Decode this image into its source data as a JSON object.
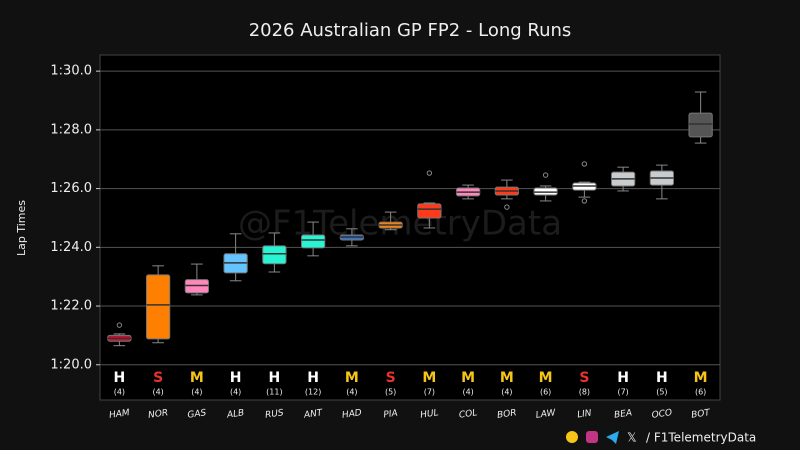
{
  "chart_data": {
    "type": "box",
    "title": "2026 Australian GP FP2 - Long Runs",
    "y_label": "Lap Times",
    "watermark": "@F1TelemetryData",
    "footer": "/ F1TelemetryData",
    "categories": [
      "HAM",
      "NOR",
      "GAS",
      "ALB",
      "RUS",
      "ANT",
      "HAD",
      "PIA",
      "HUL",
      "COL",
      "BOR",
      "LAW",
      "LIN",
      "BEA",
      "OCO",
      "BOT"
    ],
    "colors": [
      "#c8102e",
      "#ff8000",
      "#ff87bc",
      "#64c4ff",
      "#27f4d2",
      "#27f4d2",
      "#3671c6",
      "#ff8000",
      "#ff3a1a",
      "#ff87bc",
      "#ff3a1a",
      "#ffffff",
      "#ffffff",
      "#c8ccce",
      "#c8ccce",
      "#555555"
    ],
    "compounds": [
      "H",
      "S",
      "M",
      "H",
      "H",
      "H",
      "M",
      "S",
      "M",
      "M",
      "M",
      "M",
      "S",
      "H",
      "H",
      "M"
    ],
    "compound_colors": {
      "H": "#ffffff",
      "S": "#e8322b",
      "M": "#f5c518"
    },
    "count_labels": [
      "(4)",
      "(4)",
      "(4)",
      "(4)",
      "(11)",
      "(12)",
      "(4)",
      "(5)",
      "(7)",
      "(4)",
      "(4)",
      "(6)",
      "(8)",
      "(7)",
      "(5)",
      "(6)"
    ],
    "boxes": [
      {
        "min": 80.65,
        "q1": 80.8,
        "median": 80.9,
        "q3": 81.0,
        "max": 81.05,
        "outliers": [
          81.35
        ]
      },
      {
        "min": 80.75,
        "q1": 80.88,
        "median": 82.04,
        "q3": 83.06,
        "max": 83.37,
        "outliers": []
      },
      {
        "min": 82.38,
        "q1": 82.45,
        "median": 82.7,
        "q3": 82.9,
        "max": 83.43,
        "outliers": []
      },
      {
        "min": 82.86,
        "q1": 83.13,
        "median": 83.47,
        "q3": 83.78,
        "max": 84.46,
        "outliers": []
      },
      {
        "min": 83.16,
        "q1": 83.44,
        "median": 83.78,
        "q3": 84.05,
        "max": 84.49,
        "outliers": []
      },
      {
        "min": 83.71,
        "q1": 83.98,
        "median": 84.25,
        "q3": 84.42,
        "max": 84.86,
        "outliers": []
      },
      {
        "min": 84.05,
        "q1": 84.25,
        "median": 84.35,
        "q3": 84.42,
        "max": 84.63,
        "outliers": []
      },
      {
        "min": 84.6,
        "q1": 84.66,
        "median": 84.76,
        "q3": 84.86,
        "max": 85.2,
        "outliers": []
      },
      {
        "min": 84.66,
        "q1": 85.0,
        "median": 85.3,
        "q3": 85.48,
        "max": 85.51,
        "outliers": [
          86.53
        ]
      },
      {
        "min": 85.65,
        "q1": 85.75,
        "median": 85.88,
        "q3": 86.02,
        "max": 86.12,
        "outliers": []
      },
      {
        "min": 85.65,
        "q1": 85.78,
        "median": 85.92,
        "q3": 86.05,
        "max": 86.29,
        "outliers": [
          85.37
        ]
      },
      {
        "min": 85.58,
        "q1": 85.78,
        "median": 85.88,
        "q3": 86.02,
        "max": 86.09,
        "outliers": [
          86.46
        ]
      },
      {
        "min": 85.71,
        "q1": 85.95,
        "median": 86.09,
        "q3": 86.19,
        "max": 86.22,
        "outliers": [
          86.84,
          85.58
        ]
      },
      {
        "min": 85.92,
        "q1": 86.09,
        "median": 86.33,
        "q3": 86.56,
        "max": 86.73,
        "outliers": []
      },
      {
        "min": 85.65,
        "q1": 86.12,
        "median": 86.36,
        "q3": 86.6,
        "max": 86.8,
        "outliers": []
      },
      {
        "min": 87.55,
        "q1": 87.76,
        "median": 88.2,
        "q3": 88.57,
        "max": 89.29,
        "outliers": []
      }
    ],
    "ylim": [
      78.8,
      90.55
    ],
    "yticks": [
      {
        "value": 80,
        "label": "1:20.0"
      },
      {
        "value": 82,
        "label": "1:22.0"
      },
      {
        "value": 84,
        "label": "1:24.0"
      },
      {
        "value": 86,
        "label": "1:26.0"
      },
      {
        "value": 88,
        "label": "1:28.0"
      },
      {
        "value": 90,
        "label": "1:30.0"
      }
    ],
    "grid": true
  }
}
